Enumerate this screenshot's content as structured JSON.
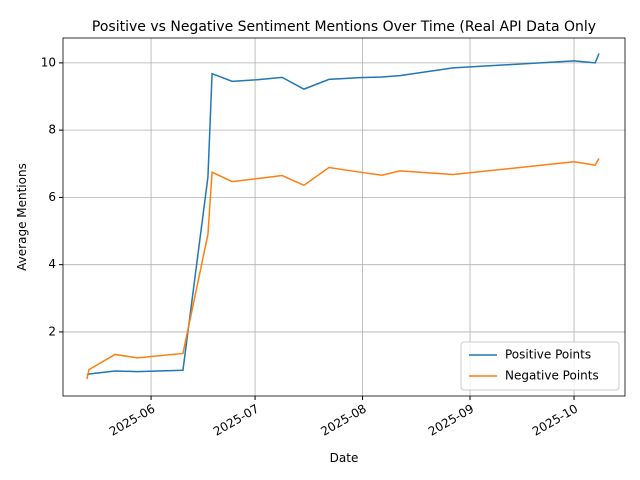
{
  "chart_data": {
    "type": "line",
    "title": "Positive vs Negative Sentiment Mentions Over Time (Real API Data Only",
    "x_label": "Date",
    "y_label": "Average Mentions",
    "x": [
      133.5,
      134.1,
      141.6,
      148.0,
      161.2,
      168.4,
      169.6,
      175.4,
      182.6,
      189.8,
      196.1,
      203.3,
      212.3,
      218.6,
      223.8,
      239.1,
      274.0,
      280.1,
      281.2
    ],
    "series": [
      {
        "name": "Positive Points",
        "color": "#1f77b4",
        "values": [
          0.72,
          0.75,
          0.84,
          0.82,
          0.86,
          6.6,
          9.68,
          9.45,
          9.5,
          9.57,
          9.22,
          9.51,
          9.56,
          9.58,
          9.62,
          9.85,
          10.06,
          10.0,
          10.28
        ]
      },
      {
        "name": "Negative Points",
        "color": "#ff7f0e",
        "values": [
          0.6,
          0.88,
          1.33,
          1.23,
          1.36,
          4.9,
          6.75,
          6.47,
          6.56,
          6.65,
          6.36,
          6.89,
          6.75,
          6.66,
          6.79,
          6.68,
          7.06,
          6.96,
          7.16
        ]
      }
    ],
    "xlim": [
      126.6,
      288.7
    ],
    "xticks": [
      {
        "value": 152,
        "label": "2025-06"
      },
      {
        "value": 182,
        "label": "2025-07"
      },
      {
        "value": 213,
        "label": "2025-08"
      },
      {
        "value": 244,
        "label": "2025-09"
      },
      {
        "value": 274,
        "label": "2025-10"
      }
    ],
    "ylim": [
      0.095,
      10.74
    ],
    "yticks": [
      2,
      4,
      6,
      8,
      10
    ],
    "grid": true,
    "legend": "lower right"
  }
}
